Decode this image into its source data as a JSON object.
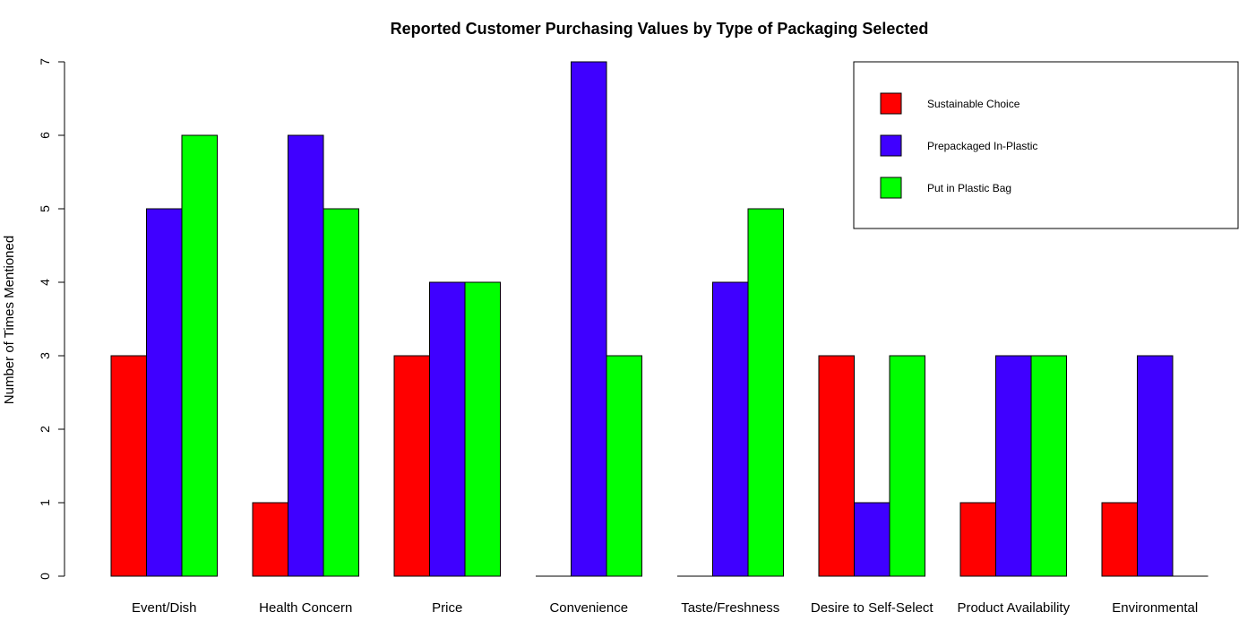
{
  "chart_data": {
    "type": "bar",
    "title": "Reported Customer Purchasing Values by Type of Packaging Selected",
    "xlabel": "",
    "ylabel": "Number of Times Mentioned",
    "ylim": [
      0,
      7
    ],
    "yticks": [
      0,
      1,
      2,
      3,
      4,
      5,
      6,
      7
    ],
    "categories": [
      "Event/Dish",
      "Health Concern",
      "Price",
      "Convenience",
      "Taste/Freshness",
      "Desire to Self-Select",
      "Product Availability",
      "Environmental"
    ],
    "series": [
      {
        "name": "Sustainable Choice",
        "color": "#ff0000",
        "values": [
          3,
          1,
          3,
          0,
          0,
          3,
          1,
          1
        ]
      },
      {
        "name": "Prepackaged In-Plastic",
        "color": "#3f00ff",
        "values": [
          5,
          6,
          4,
          7,
          4,
          1,
          3,
          3
        ]
      },
      {
        "name": "Put in Plastic Bag",
        "color": "#00ff00",
        "values": [
          6,
          5,
          4,
          3,
          5,
          3,
          3,
          0
        ]
      }
    ],
    "legend_position": "top-right",
    "grid": false
  }
}
